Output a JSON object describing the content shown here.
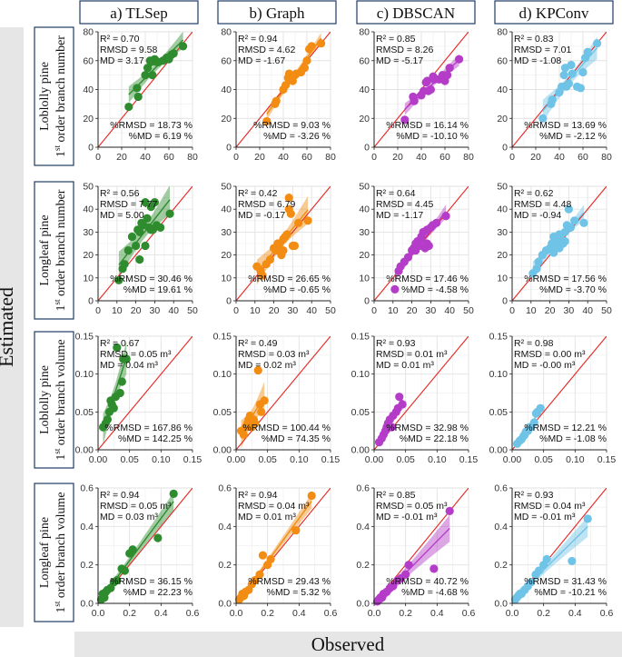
{
  "figure": {
    "y_axis_title": "Estimated",
    "x_axis_title": "Observed",
    "column_titles": [
      "a) TLSep",
      "b) Graph",
      "c) DBSCAN",
      "d) KPConv"
    ],
    "row_titles": [
      {
        "species": "Loblolly pine",
        "prefix": "1",
        "sup": "st",
        "metric": " order branch number"
      },
      {
        "species": "Longleaf pine",
        "prefix": "1",
        "sup": "st",
        "metric": " order branch number"
      },
      {
        "species": "Loblolly pine",
        "prefix": "1",
        "sup": "st",
        "metric": " order branch volume"
      },
      {
        "species": "Longleaf pine",
        "prefix": "1",
        "sup": "st",
        "metric": " order branch volume"
      }
    ],
    "colors": {
      "TLSep": "#2e8b2e",
      "Graph": "#f28c12",
      "DBSCAN": "#b43cc8",
      "KPConv": "#6ec3e6",
      "one_to_one_line": "#e8231e",
      "header_fill": "#ffffff",
      "header_border": "#1f3b66",
      "strip_fill": "#e6e6e6"
    }
  },
  "chart_data": [
    {
      "type": "scatter",
      "row": 0,
      "col": 0,
      "method": "TLSep",
      "xlim": [
        0,
        80
      ],
      "ylim": [
        0,
        80
      ],
      "ticks": [
        0,
        20,
        40,
        60,
        80
      ],
      "stats": {
        "r2": "R² = 0.70",
        "rmsd": "RMSD = 9.58",
        "md": "MD = 3.17",
        "prmsd": "%RMSD = 18.73 %",
        "pmd": "%MD = 6.19 %"
      },
      "x": [
        26,
        33,
        34,
        40,
        42,
        44,
        45,
        46,
        48,
        50,
        51,
        55,
        58,
        60,
        62,
        64,
        72
      ],
      "y": [
        28,
        41,
        35,
        50,
        55,
        60,
        59,
        50,
        61,
        59,
        59,
        60,
        62,
        61,
        64,
        65,
        70
      ]
    },
    {
      "type": "scatter",
      "row": 0,
      "col": 1,
      "method": "Graph",
      "xlim": [
        0,
        80
      ],
      "ylim": [
        0,
        80
      ],
      "ticks": [
        0,
        20,
        40,
        60,
        80
      ],
      "stats": {
        "r2": "R² = 0.94",
        "rmsd": "RMSD = 4.62",
        "md": "MD = -1.67",
        "prmsd": "%RMSD = 9.03 %",
        "pmd": "%MD = -3.26 %"
      },
      "x": [
        26,
        33,
        34,
        40,
        42,
        44,
        45,
        46,
        48,
        50,
        51,
        55,
        58,
        60,
        62,
        64,
        72
      ],
      "y": [
        18,
        30,
        32,
        40,
        43,
        48,
        51,
        47,
        46,
        50,
        51,
        52,
        55,
        60,
        68,
        70,
        72
      ]
    },
    {
      "type": "scatter",
      "row": 0,
      "col": 2,
      "method": "DBSCAN",
      "xlim": [
        0,
        80
      ],
      "ylim": [
        0,
        80
      ],
      "ticks": [
        0,
        20,
        40,
        60,
        80
      ],
      "stats": {
        "r2": "R² = 0.85",
        "rmsd": "RMSD = 8.26",
        "md": "MD = -5.17",
        "prmsd": "%RMSD = 16.14 %",
        "pmd": "%MD = -10.10 %"
      },
      "x": [
        26,
        33,
        34,
        40,
        42,
        44,
        45,
        46,
        48,
        50,
        51,
        55,
        58,
        60,
        62,
        64,
        72
      ],
      "y": [
        19,
        35,
        32,
        36,
        39,
        45,
        46,
        39,
        40,
        49,
        47,
        47,
        50,
        46,
        50,
        55,
        61
      ]
    },
    {
      "type": "scatter",
      "row": 0,
      "col": 3,
      "method": "KPConv",
      "xlim": [
        0,
        80
      ],
      "ylim": [
        0,
        80
      ],
      "ticks": [
        0,
        20,
        40,
        60,
        80
      ],
      "stats": {
        "r2": "R² = 0.83",
        "rmsd": "RMSD = 7.01",
        "md": "MD = -1.08",
        "prmsd": "%RMSD = 13.69 %",
        "pmd": "%MD = -2.12 %"
      },
      "x": [
        26,
        33,
        34,
        40,
        42,
        44,
        45,
        46,
        48,
        50,
        51,
        55,
        58,
        60,
        62,
        64,
        72
      ],
      "y": [
        20,
        30,
        33,
        38,
        42,
        50,
        55,
        42,
        44,
        57,
        51,
        42,
        41,
        52,
        62,
        66,
        72
      ]
    },
    {
      "type": "scatter",
      "row": 1,
      "col": 0,
      "method": "TLSep",
      "xlim": [
        0,
        50
      ],
      "ylim": [
        0,
        50
      ],
      "ticks": [
        0,
        10,
        20,
        30,
        40,
        50
      ],
      "stats": {
        "r2": "R² = 0.56",
        "rmsd": "RMSD = 7.77",
        "md": "MD = 5.00",
        "prmsd": "%RMSD = 30.46 %",
        "pmd": "%MD = 19.61 %"
      },
      "x": [
        11,
        13,
        14,
        16,
        18,
        20,
        21,
        22,
        22,
        23,
        24,
        25,
        25,
        26,
        27,
        28,
        28,
        29,
        30,
        31,
        33,
        38
      ],
      "y": [
        9,
        14,
        16,
        22,
        28,
        24,
        31,
        18,
        30,
        34,
        33,
        24,
        43,
        36,
        32,
        41,
        31,
        31,
        43,
        33,
        32,
        38
      ]
    },
    {
      "type": "scatter",
      "row": 1,
      "col": 1,
      "method": "Graph",
      "xlim": [
        0,
        50
      ],
      "ylim": [
        0,
        50
      ],
      "ticks": [
        0,
        10,
        20,
        30,
        40,
        50
      ],
      "stats": {
        "r2": "R² = 0.42",
        "rmsd": "RMSD = 6.79",
        "md": "MD = -0.17",
        "prmsd": "%RMSD = 26.65 %",
        "pmd": "%MD = -0.65 %"
      },
      "x": [
        11,
        13,
        14,
        16,
        18,
        20,
        21,
        22,
        22,
        23,
        24,
        25,
        25,
        26,
        27,
        28,
        28,
        29,
        30,
        31,
        33,
        38
      ],
      "y": [
        15,
        13,
        11,
        16,
        18,
        23,
        22,
        24,
        25,
        25,
        20,
        22,
        27,
        28,
        29,
        45,
        40,
        38,
        24,
        24,
        34,
        35
      ]
    },
    {
      "type": "scatter",
      "row": 1,
      "col": 2,
      "method": "DBSCAN",
      "xlim": [
        0,
        50
      ],
      "ylim": [
        0,
        50
      ],
      "ticks": [
        0,
        10,
        20,
        30,
        40,
        50
      ],
      "stats": {
        "r2": "R² = 0.64",
        "rmsd": "RMSD = 4.45",
        "md": "MD = -1.17",
        "prmsd": "%RMSD = 17.46 %",
        "pmd": "%MD = -4.58 %"
      },
      "x": [
        11,
        13,
        14,
        16,
        18,
        20,
        21,
        22,
        22,
        23,
        24,
        25,
        25,
        26,
        27,
        28,
        28,
        29,
        30,
        31,
        33,
        38
      ],
      "y": [
        5,
        13,
        15,
        17,
        19,
        22,
        23,
        22,
        25,
        26,
        24,
        28,
        27,
        30,
        23,
        25,
        31,
        24,
        32,
        33,
        34,
        37
      ]
    },
    {
      "type": "scatter",
      "row": 1,
      "col": 3,
      "method": "KPConv",
      "xlim": [
        0,
        50
      ],
      "ylim": [
        0,
        50
      ],
      "ticks": [
        0,
        10,
        20,
        30,
        40,
        50
      ],
      "stats": {
        "r2": "R² = 0.62",
        "rmsd": "RMSD = 4.48",
        "md": "MD = -0.94",
        "prmsd": "%RMSD = 17.56 %",
        "pmd": "%MD = -3.70 %"
      },
      "x": [
        11,
        13,
        14,
        16,
        18,
        20,
        21,
        22,
        22,
        23,
        24,
        25,
        25,
        26,
        27,
        28,
        28,
        29,
        30,
        31,
        33,
        38
      ],
      "y": [
        12,
        14,
        17,
        20,
        22,
        23,
        25,
        28,
        21,
        24,
        26,
        29,
        23,
        27,
        25,
        30,
        26,
        33,
        40,
        32,
        35,
        34
      ]
    },
    {
      "type": "scatter",
      "row": 2,
      "col": 0,
      "method": "TLSep",
      "xlim": [
        0,
        0.15
      ],
      "ylim": [
        0,
        0.15
      ],
      "ticks": [
        0,
        0.05,
        0.1,
        0.15
      ],
      "tick_labels": [
        "0.00",
        "0.05",
        "0.10",
        "0.15"
      ],
      "stats": {
        "r2": "R² = 0.67",
        "rmsd": "RMSD = 0.05 m³",
        "md": "MD = 0.04 m³",
        "prmsd": "%RMSD = 167.86 %",
        "pmd": "%MD = 142.25 %"
      },
      "x": [
        0.008,
        0.012,
        0.015,
        0.018,
        0.02,
        0.022,
        0.025,
        0.028,
        0.03,
        0.035,
        0.038,
        0.04,
        0.045
      ],
      "y": [
        0.03,
        0.035,
        0.04,
        0.05,
        0.065,
        0.06,
        0.055,
        0.07,
        0.135,
        0.075,
        0.09,
        0.12,
        0.12
      ]
    },
    {
      "type": "scatter",
      "row": 2,
      "col": 1,
      "method": "Graph",
      "xlim": [
        0,
        0.15
      ],
      "ylim": [
        0,
        0.15
      ],
      "ticks": [
        0,
        0.05,
        0.1,
        0.15
      ],
      "tick_labels": [
        "0.00",
        "0.05",
        "0.10",
        "0.15"
      ],
      "stats": {
        "r2": "R² = 0.49",
        "rmsd": "RMSD = 0.03 m³",
        "md": "MD = 0.02 m³",
        "prmsd": "%RMSD = 100.44 %",
        "pmd": "%MD = 74.35 %"
      },
      "x": [
        0.008,
        0.012,
        0.015,
        0.018,
        0.02,
        0.022,
        0.025,
        0.028,
        0.03,
        0.035,
        0.038,
        0.04,
        0.045
      ],
      "y": [
        0.025,
        0.02,
        0.03,
        0.035,
        0.04,
        0.045,
        0.03,
        0.04,
        0.035,
        0.105,
        0.06,
        0.05,
        0.065
      ]
    },
    {
      "type": "scatter",
      "row": 2,
      "col": 2,
      "method": "DBSCAN",
      "xlim": [
        0,
        0.15
      ],
      "ylim": [
        0,
        0.15
      ],
      "ticks": [
        0,
        0.05,
        0.1,
        0.15
      ],
      "tick_labels": [
        "0.00",
        "0.05",
        "0.10",
        "0.15"
      ],
      "stats": {
        "r2": "R² = 0.93",
        "rmsd": "RMSD = 0.01 m³",
        "md": "MD = 0.01 m³",
        "prmsd": "%RMSD = 32.98 %",
        "pmd": "%MD = 22.18 %"
      },
      "x": [
        0.008,
        0.012,
        0.015,
        0.018,
        0.02,
        0.022,
        0.025,
        0.028,
        0.03,
        0.035,
        0.038,
        0.04,
        0.045
      ],
      "y": [
        0.01,
        0.015,
        0.02,
        0.025,
        0.03,
        0.035,
        0.04,
        0.03,
        0.045,
        0.05,
        0.055,
        0.07,
        0.06
      ]
    },
    {
      "type": "scatter",
      "row": 2,
      "col": 3,
      "method": "KPConv",
      "xlim": [
        0,
        0.15
      ],
      "ylim": [
        0,
        0.15
      ],
      "ticks": [
        0,
        0.05,
        0.1,
        0.15
      ],
      "tick_labels": [
        "0.00",
        "0.05",
        "0.10",
        "0.15"
      ],
      "stats": {
        "r2": "R² = 0.98",
        "rmsd": "RMSD = 0.00 m³",
        "md": "MD = -0.00 m³",
        "prmsd": "%RMSD = 12.21 %",
        "pmd": "%MD = -1.08 %"
      },
      "x": [
        0.008,
        0.012,
        0.015,
        0.018,
        0.02,
        0.022,
        0.025,
        0.028,
        0.03,
        0.035,
        0.038,
        0.04,
        0.045
      ],
      "y": [
        0.008,
        0.012,
        0.014,
        0.018,
        0.02,
        0.024,
        0.025,
        0.03,
        0.03,
        0.036,
        0.048,
        0.05,
        0.055
      ]
    },
    {
      "type": "scatter",
      "row": 3,
      "col": 0,
      "method": "TLSep",
      "xlim": [
        0,
        0.6
      ],
      "ylim": [
        0,
        0.6
      ],
      "ticks": [
        0,
        0.2,
        0.4,
        0.6
      ],
      "tick_labels": [
        "0.0",
        "0.2",
        "0.4",
        "0.6"
      ],
      "stats": {
        "r2": "R² = 0.94",
        "rmsd": "RMSD = 0.05 m³",
        "md": "MD = 0.03 m³",
        "prmsd": "%RMSD = 36.15 %",
        "pmd": "%MD = 22.23 %"
      },
      "x": [
        0.02,
        0.03,
        0.04,
        0.05,
        0.06,
        0.08,
        0.1,
        0.12,
        0.15,
        0.17,
        0.2,
        0.22,
        0.38,
        0.48
      ],
      "y": [
        0.02,
        0.05,
        0.03,
        0.06,
        0.07,
        0.08,
        0.11,
        0.12,
        0.18,
        0.17,
        0.26,
        0.28,
        0.34,
        0.57
      ]
    },
    {
      "type": "scatter",
      "row": 3,
      "col": 1,
      "method": "Graph",
      "xlim": [
        0,
        0.6
      ],
      "ylim": [
        0,
        0.6
      ],
      "ticks": [
        0,
        0.2,
        0.4,
        0.6
      ],
      "tick_labels": [
        "0.0",
        "0.2",
        "0.4",
        "0.6"
      ],
      "stats": {
        "r2": "R² = 0.94",
        "rmsd": "RMSD = 0.04 m³",
        "md": "MD = 0.01 m³",
        "prmsd": "%RMSD = 29.43 %",
        "pmd": "%MD = 5.32 %"
      },
      "x": [
        0.02,
        0.03,
        0.04,
        0.05,
        0.06,
        0.08,
        0.1,
        0.12,
        0.15,
        0.17,
        0.2,
        0.22,
        0.38,
        0.48
      ],
      "y": [
        0.02,
        0.03,
        0.05,
        0.04,
        0.06,
        0.07,
        0.1,
        0.12,
        0.15,
        0.25,
        0.2,
        0.23,
        0.38,
        0.56
      ]
    },
    {
      "type": "scatter",
      "row": 3,
      "col": 2,
      "method": "DBSCAN",
      "xlim": [
        0,
        0.6
      ],
      "ylim": [
        0,
        0.6
      ],
      "ticks": [
        0,
        0.2,
        0.4,
        0.6
      ],
      "tick_labels": [
        "0.0",
        "0.2",
        "0.4",
        "0.6"
      ],
      "stats": {
        "r2": "R² = 0.85",
        "rmsd": "RMSD = 0.05 m³",
        "md": "MD = -0.01 m³",
        "prmsd": "%RMSD = 40.72 %",
        "pmd": "%MD = -4.68 %"
      },
      "x": [
        0.02,
        0.03,
        0.04,
        0.05,
        0.06,
        0.08,
        0.1,
        0.12,
        0.15,
        0.17,
        0.2,
        0.22,
        0.38,
        0.48
      ],
      "y": [
        0.01,
        0.02,
        0.03,
        0.03,
        0.05,
        0.06,
        0.08,
        0.09,
        0.12,
        0.13,
        0.15,
        0.2,
        0.18,
        0.48
      ]
    },
    {
      "type": "scatter",
      "row": 3,
      "col": 3,
      "method": "KPConv",
      "xlim": [
        0,
        0.6
      ],
      "ylim": [
        0,
        0.6
      ],
      "ticks": [
        0,
        0.2,
        0.4,
        0.6
      ],
      "tick_labels": [
        "0.0",
        "0.2",
        "0.4",
        "0.6"
      ],
      "stats": {
        "r2": "R² = 0.93",
        "rmsd": "RMSD = 0.04 m³",
        "md": "MD = -0.01 m³",
        "prmsd": "%RMSD = 31.43 %",
        "pmd": "%MD = -10.21 %"
      },
      "x": [
        0.02,
        0.03,
        0.04,
        0.05,
        0.06,
        0.08,
        0.1,
        0.12,
        0.15,
        0.17,
        0.2,
        0.22,
        0.38,
        0.48
      ],
      "y": [
        0.02,
        0.03,
        0.04,
        0.05,
        0.05,
        0.07,
        0.09,
        0.11,
        0.15,
        0.17,
        0.2,
        0.23,
        0.22,
        0.44
      ]
    }
  ]
}
